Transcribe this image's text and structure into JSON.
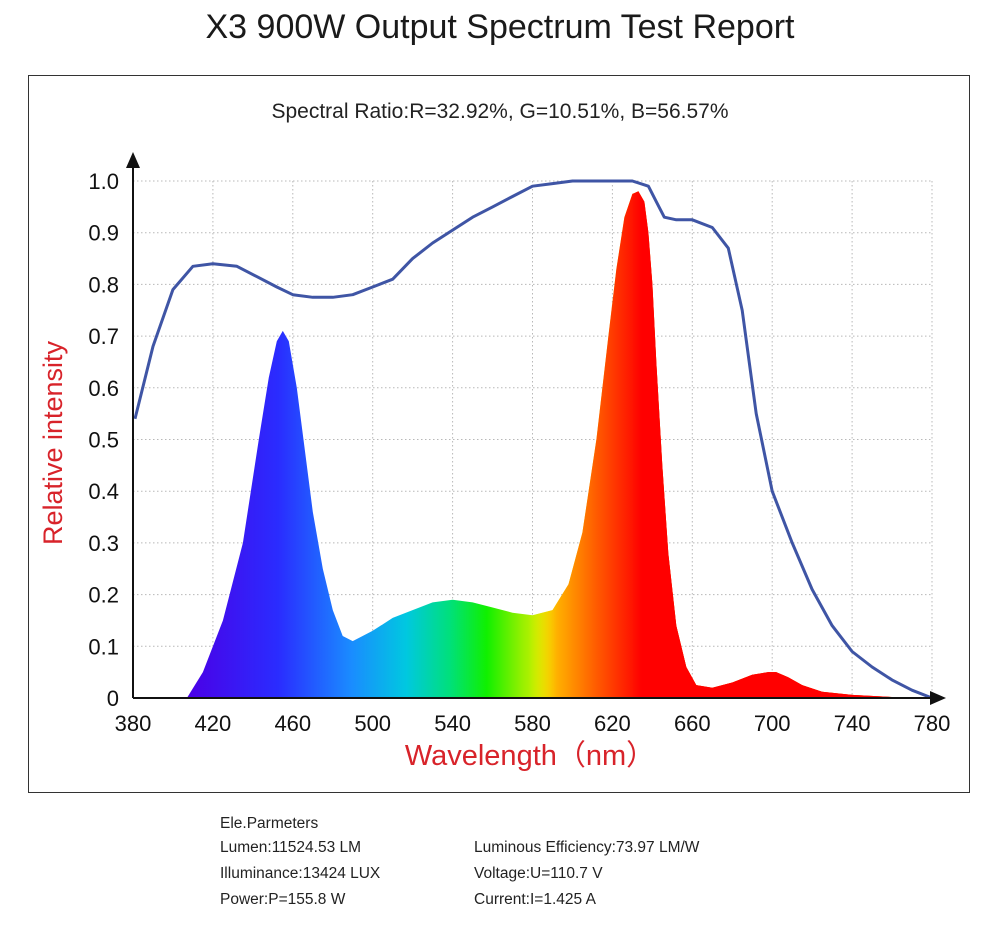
{
  "title": "X3 900W Output Spectrum Test Report",
  "spectral_ratio": "Spectral Ratio:R=32.92%, G=10.51%, B=56.57%",
  "parameters": {
    "heading": "Ele.Parmeters",
    "lumen": "Lumen:11524.53 LM",
    "illuminance": "Illuminance:13424 LUX",
    "power": "Power:P=155.8 W",
    "efficiency": "Luminous Efficiency:73.97 LM/W",
    "voltage": "Voltage:U=110.7 V",
    "current": "Current:I=1.425 A"
  },
  "colors": {
    "envelope": "#3f55a5",
    "axis_label": "#d8232a"
  },
  "chart_data": {
    "type": "area",
    "xlabel": "Wavelength（nm）",
    "ylabel": "Relative intensity",
    "xlim": [
      380,
      780
    ],
    "ylim": [
      0,
      1.0
    ],
    "x_ticks": [
      380,
      420,
      460,
      500,
      540,
      580,
      620,
      660,
      700,
      740,
      780
    ],
    "y_ticks": [
      0,
      0.1,
      0.2,
      0.3,
      0.4,
      0.5,
      0.6,
      0.7,
      0.8,
      0.9,
      1.0
    ],
    "y_tick_labels": [
      "0",
      "0.1",
      "0.2",
      "0.3",
      "0.4",
      "0.5",
      "0.6",
      "0.7",
      "0.8",
      "0.9",
      "1.0"
    ],
    "grid": true,
    "series": [
      {
        "kind": "filled spectrum",
        "x": [
          407,
          415,
          425,
          435,
          443,
          448,
          452,
          455,
          458,
          462,
          466,
          470,
          475,
          480,
          485,
          490,
          500,
          510,
          520,
          530,
          540,
          550,
          560,
          570,
          580,
          590,
          598,
          605,
          612,
          618,
          622,
          626,
          630,
          633,
          636,
          638,
          640,
          642,
          645,
          648,
          652,
          657,
          662,
          670,
          680,
          690,
          698,
          702,
          708,
          715,
          725,
          740,
          760,
          775
        ],
        "y": [
          0,
          0.05,
          0.15,
          0.3,
          0.5,
          0.62,
          0.69,
          0.71,
          0.69,
          0.6,
          0.48,
          0.36,
          0.25,
          0.17,
          0.12,
          0.11,
          0.13,
          0.155,
          0.17,
          0.185,
          0.19,
          0.185,
          0.175,
          0.165,
          0.16,
          0.17,
          0.22,
          0.32,
          0.5,
          0.7,
          0.83,
          0.93,
          0.975,
          0.98,
          0.96,
          0.9,
          0.8,
          0.65,
          0.45,
          0.28,
          0.14,
          0.06,
          0.025,
          0.02,
          0.03,
          0.045,
          0.05,
          0.05,
          0.04,
          0.025,
          0.012,
          0.006,
          0.002,
          0
        ]
      },
      {
        "kind": "envelope line",
        "x": [
          381,
          390,
          400,
          410,
          420,
          432,
          442,
          452,
          460,
          470,
          480,
          490,
          500,
          510,
          520,
          530,
          540,
          550,
          560,
          570,
          580,
          590,
          600,
          610,
          620,
          630,
          638,
          642,
          646,
          652,
          660,
          670,
          678,
          685,
          692,
          700,
          710,
          720,
          730,
          740,
          750,
          760,
          770,
          780
        ],
        "y": [
          0.54,
          0.68,
          0.79,
          0.835,
          0.84,
          0.835,
          0.815,
          0.795,
          0.78,
          0.775,
          0.775,
          0.78,
          0.795,
          0.81,
          0.85,
          0.88,
          0.905,
          0.93,
          0.95,
          0.97,
          0.99,
          0.995,
          1.0,
          1.0,
          1.0,
          1.0,
          0.99,
          0.96,
          0.93,
          0.925,
          0.925,
          0.91,
          0.87,
          0.75,
          0.55,
          0.4,
          0.3,
          0.21,
          0.14,
          0.09,
          0.06,
          0.035,
          0.015,
          0
        ]
      }
    ]
  }
}
